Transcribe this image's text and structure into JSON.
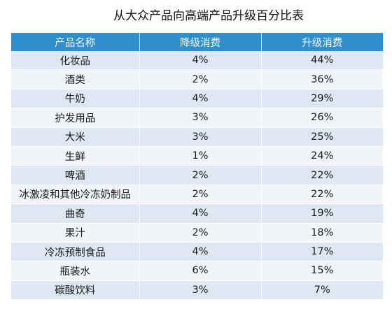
{
  "chart_data": {
    "type": "table",
    "title": "从大众产品向高端产品升级百分比表",
    "columns": [
      "产品名称",
      "降级消费",
      "升级消费"
    ],
    "rows": [
      [
        "化妆品",
        "4%",
        "44%"
      ],
      [
        "酒类",
        "2%",
        "36%"
      ],
      [
        "牛奶",
        "4%",
        "29%"
      ],
      [
        "护发用品",
        "3%",
        "26%"
      ],
      [
        "大米",
        "3%",
        "25%"
      ],
      [
        "生鲜",
        "1%",
        "24%"
      ],
      [
        "啤酒",
        "2%",
        "22%"
      ],
      [
        "冰激凌和其他冷冻奶制品",
        "2%",
        "22%"
      ],
      [
        "曲奇",
        "4%",
        "19%"
      ],
      [
        "果汁",
        "2%",
        "18%"
      ],
      [
        "冷冻预制食品",
        "4%",
        "17%"
      ],
      [
        "瓶装水",
        "6%",
        "15%"
      ],
      [
        "碳酸饮料",
        "3%",
        "7%"
      ]
    ],
    "colors": {
      "header_bg": "#2f8fce",
      "header_text": "#ffffff",
      "row_odd": "#dde8f3",
      "row_even": "#f1f5fa"
    }
  }
}
